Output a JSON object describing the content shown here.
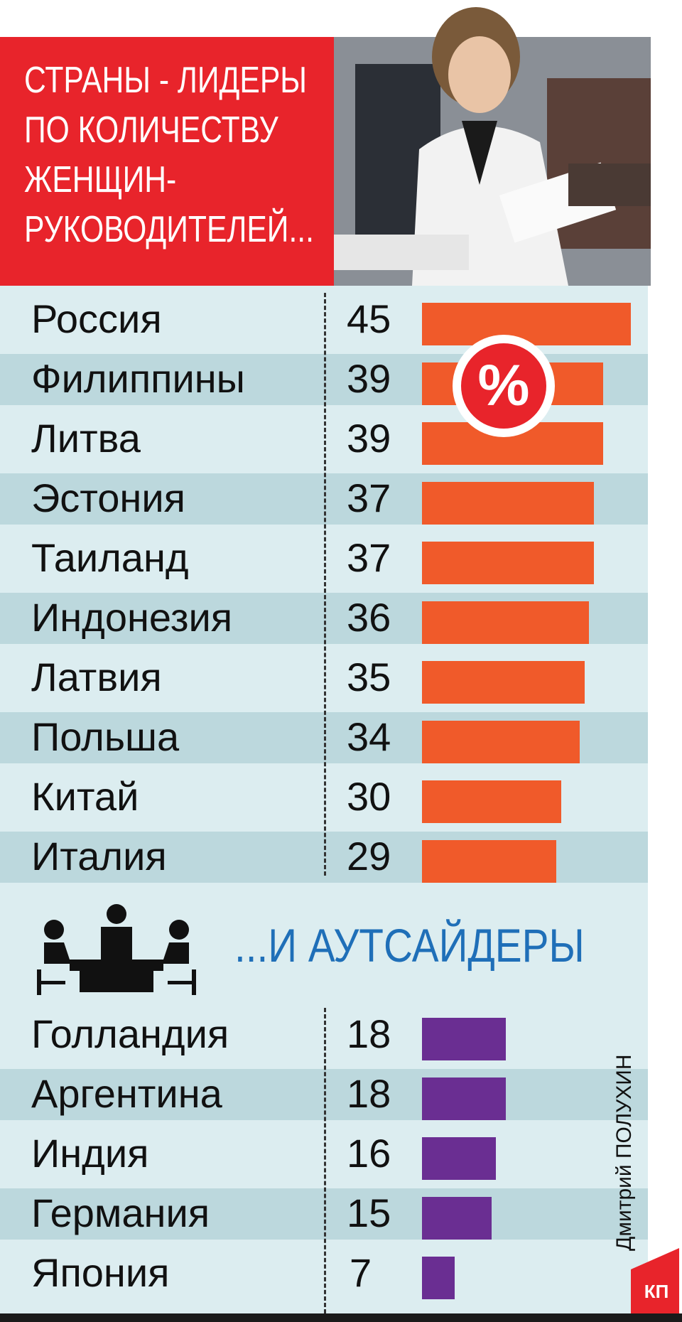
{
  "header": {
    "title_lines": [
      "СТРАНЫ - ЛИДЕРЫ",
      "ПО КОЛИЧЕСТВУ",
      "ЖЕНЩИН-",
      "РУКОВОДИТЕЛЕЙ..."
    ]
  },
  "badge": {
    "symbol": "%"
  },
  "outsiders_title": "...И АУТСАЙДЕРЫ",
  "credit": "Дмитрий ПОЛУХИН",
  "logo_text": "КП",
  "colors": {
    "header_red": "#e8242b",
    "leaders_bar": "#f05a2a",
    "outsiders_bar": "#6a2e92",
    "panel_bg": "#dcedf0",
    "stripe_bg": "#bcd8dd",
    "outsiders_title": "#1f6fb8"
  },
  "chart_data": [
    {
      "type": "bar",
      "title": "СТРАНЫ - ЛИДЕРЫ ПО КОЛИЧЕСТВУ ЖЕНЩИН-РУКОВОДИТЕЛЕЙ...",
      "unit": "%",
      "categories": [
        "Россия",
        "Филиппины",
        "Литва",
        "Эстония",
        "Таиланд",
        "Индонезия",
        "Латвия",
        "Польша",
        "Китай",
        "Италия"
      ],
      "values": [
        45,
        39,
        39,
        37,
        37,
        36,
        35,
        34,
        30,
        29
      ],
      "orientation": "horizontal"
    },
    {
      "type": "bar",
      "title": "...И АУТСАЙДЕРЫ",
      "unit": "%",
      "categories": [
        "Голландия",
        "Аргентина",
        "Индия",
        "Германия",
        "Япония"
      ],
      "values": [
        18,
        18,
        16,
        15,
        7
      ],
      "orientation": "horizontal"
    }
  ]
}
